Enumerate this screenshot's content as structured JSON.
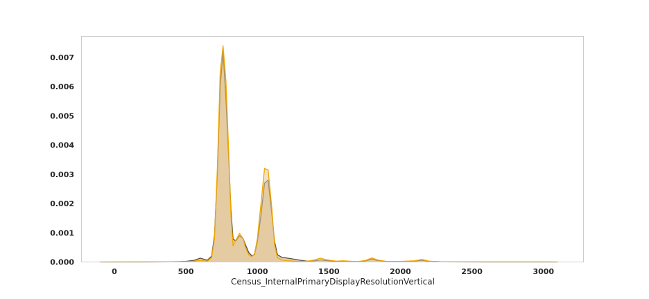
{
  "chart_data": {
    "type": "area",
    "title": "",
    "xlabel": "Census_InternalPrimaryDisplayResolutionVertical",
    "ylabel": "",
    "xlim": [
      -230,
      3280
    ],
    "ylim": [
      0,
      0.00772
    ],
    "grid": false,
    "legend": "none",
    "x_ticks": [
      0,
      500,
      1000,
      1500,
      2000,
      2500,
      3000
    ],
    "x_tick_labels": [
      "0",
      "500",
      "1000",
      "1500",
      "2000",
      "2500",
      "3000"
    ],
    "y_ticks": [
      0,
      0.001,
      0.002,
      0.003,
      0.004,
      0.005,
      0.006,
      0.007
    ],
    "y_tick_labels": [
      "0.000",
      "0.001",
      "0.002",
      "0.003",
      "0.004",
      "0.005",
      "0.006",
      "0.007"
    ],
    "series": [
      {
        "color": "#4d4d3a",
        "fill": "#c8a87a",
        "points": [
          [
            -100,
            0
          ],
          [
            200,
            2e-06
          ],
          [
            400,
            5e-06
          ],
          [
            500,
            2e-05
          ],
          [
            560,
            6e-05
          ],
          [
            600,
            0.00013
          ],
          [
            650,
            6e-05
          ],
          [
            680,
            0.0002
          ],
          [
            700,
            0.0009
          ],
          [
            720,
            0.003
          ],
          [
            740,
            0.006
          ],
          [
            760,
            0.0072
          ],
          [
            780,
            0.0056
          ],
          [
            800,
            0.0035
          ],
          [
            815,
            0.0018
          ],
          [
            830,
            0.00078
          ],
          [
            850,
            0.00072
          ],
          [
            875,
            0.0009
          ],
          [
            900,
            0.0008
          ],
          [
            920,
            0.00055
          ],
          [
            940,
            0.00032
          ],
          [
            960,
            0.00022
          ],
          [
            980,
            0.00025
          ],
          [
            1000,
            0.0007
          ],
          [
            1025,
            0.0016
          ],
          [
            1050,
            0.0027
          ],
          [
            1075,
            0.0028
          ],
          [
            1100,
            0.0017
          ],
          [
            1120,
            0.0007
          ],
          [
            1140,
            0.00025
          ],
          [
            1170,
            0.00016
          ],
          [
            1200,
            0.00014
          ],
          [
            1250,
            0.0001
          ],
          [
            1300,
            6e-05
          ],
          [
            1350,
            3e-05
          ],
          [
            1400,
            4e-05
          ],
          [
            1440,
            7e-05
          ],
          [
            1500,
            4e-05
          ],
          [
            1550,
            2e-05
          ],
          [
            1600,
            3e-05
          ],
          [
            1700,
            1e-05
          ],
          [
            1760,
            4e-05
          ],
          [
            1800,
            0.0001
          ],
          [
            1840,
            5e-05
          ],
          [
            1900,
            2e-05
          ],
          [
            2000,
            1e-05
          ],
          [
            2100,
            3e-05
          ],
          [
            2150,
            6e-05
          ],
          [
            2200,
            2e-05
          ],
          [
            2300,
            5e-06
          ],
          [
            2600,
            2e-06
          ],
          [
            3000,
            1e-06
          ],
          [
            3100,
            0
          ]
        ]
      },
      {
        "color": "#f2a600",
        "fill": "#e8c98f",
        "points": [
          [
            -100,
            0
          ],
          [
            200,
            1e-06
          ],
          [
            400,
            4e-06
          ],
          [
            500,
            1e-05
          ],
          [
            560,
            3e-05
          ],
          [
            600,
            5e-05
          ],
          [
            650,
            3e-05
          ],
          [
            680,
            0.00015
          ],
          [
            700,
            0.0008
          ],
          [
            720,
            0.0032
          ],
          [
            740,
            0.0065
          ],
          [
            760,
            0.0074
          ],
          [
            780,
            0.0062
          ],
          [
            800,
            0.0037
          ],
          [
            815,
            0.0016
          ],
          [
            830,
            0.00055
          ],
          [
            850,
            0.00075
          ],
          [
            875,
            0.00098
          ],
          [
            900,
            0.0008
          ],
          [
            920,
            0.00045
          ],
          [
            940,
            0.00025
          ],
          [
            960,
            0.00018
          ],
          [
            980,
            0.00028
          ],
          [
            1000,
            0.0008
          ],
          [
            1025,
            0.002
          ],
          [
            1050,
            0.0032
          ],
          [
            1075,
            0.00315
          ],
          [
            1100,
            0.0019
          ],
          [
            1120,
            0.0006
          ],
          [
            1140,
            0.00015
          ],
          [
            1170,
            7e-05
          ],
          [
            1200,
            5e-05
          ],
          [
            1250,
            3e-05
          ],
          [
            1300,
            2e-05
          ],
          [
            1350,
            3e-05
          ],
          [
            1400,
            7e-05
          ],
          [
            1440,
            0.00013
          ],
          [
            1480,
            8e-05
          ],
          [
            1550,
            3e-05
          ],
          [
            1600,
            4e-05
          ],
          [
            1700,
            1e-05
          ],
          [
            1760,
            6e-05
          ],
          [
            1800,
            0.00014
          ],
          [
            1840,
            7e-05
          ],
          [
            1900,
            2e-05
          ],
          [
            2000,
            2e-05
          ],
          [
            2100,
            4e-05
          ],
          [
            2150,
            9e-05
          ],
          [
            2200,
            3e-05
          ],
          [
            2300,
            5e-06
          ],
          [
            2600,
            2e-06
          ],
          [
            3000,
            1e-06
          ],
          [
            3100,
            0
          ]
        ]
      }
    ]
  }
}
